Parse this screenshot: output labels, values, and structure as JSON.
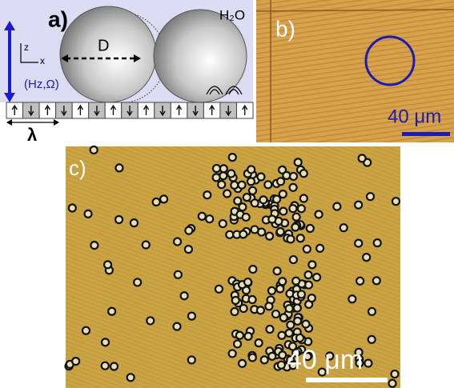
{
  "panel_a": {
    "label": "a)",
    "diameter_label": "D",
    "medium": "H₂O",
    "axis_z": "z",
    "axis_x": "x",
    "field_label": "(Hz,Ω)",
    "period_label": "λ"
  },
  "panel_b": {
    "label": "b)",
    "scale_label": "40 μm"
  },
  "panel_c": {
    "label": "c)",
    "scale_label": "40 μm"
  }
}
